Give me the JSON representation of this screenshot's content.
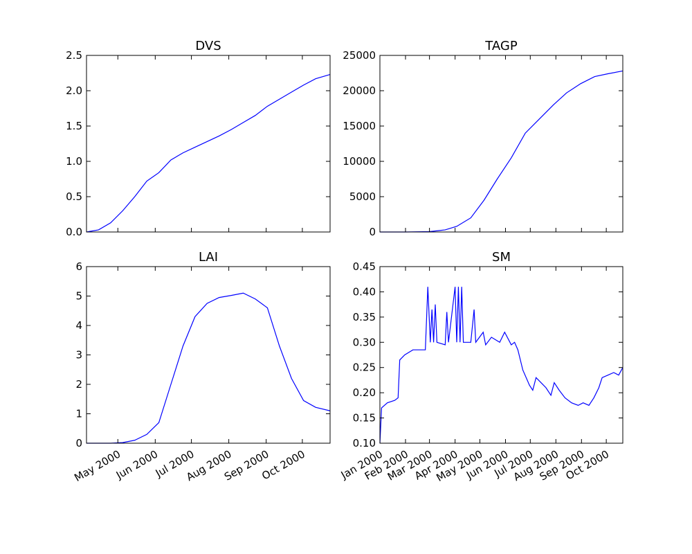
{
  "chart_data": [
    {
      "type": "line",
      "title": "DVS",
      "color": "#0000ff",
      "x": [
        "2000-04-05",
        "2000-04-15",
        "2000-04-25",
        "2000-05-05",
        "2000-05-15",
        "2000-05-25",
        "2000-06-04",
        "2000-06-14",
        "2000-06-24",
        "2000-07-04",
        "2000-07-14",
        "2000-07-24",
        "2000-08-03",
        "2000-08-13",
        "2000-08-23",
        "2000-09-02",
        "2000-09-12",
        "2000-09-22",
        "2000-10-02",
        "2000-10-12",
        "2000-10-24"
      ],
      "values": [
        0.0,
        0.03,
        0.13,
        0.3,
        0.5,
        0.72,
        0.84,
        1.02,
        1.12,
        1.2,
        1.28,
        1.36,
        1.45,
        1.55,
        1.65,
        1.78,
        1.88,
        1.98,
        2.08,
        2.17,
        2.23
      ],
      "xlim": [
        "2000-04-05",
        "2000-10-24"
      ],
      "xticks": [
        "2000-05-01",
        "2000-06-01",
        "2000-07-01",
        "2000-08-01",
        "2000-09-01",
        "2000-10-01"
      ],
      "ylim": [
        0,
        2.5
      ],
      "yticks": [
        {
          "value": 0,
          "label": "0.0"
        },
        0.5,
        {
          "value": 1,
          "label": "1.0"
        },
        1.5,
        {
          "value": 2,
          "label": "2.0"
        },
        2.5
      ]
    },
    {
      "type": "line",
      "title": "TAGP",
      "color": "#0000ff",
      "x": [
        "2000-01-01",
        "2000-02-01",
        "2000-03-01",
        "2000-03-20",
        "2000-04-03",
        "2000-04-20",
        "2000-05-06",
        "2000-05-22",
        "2000-06-08",
        "2000-06-25",
        "2000-07-12",
        "2000-07-29",
        "2000-08-14",
        "2000-08-31",
        "2000-09-17",
        "2000-10-03",
        "2000-10-21"
      ],
      "values": [
        0,
        0,
        50,
        300,
        800,
        2000,
        4500,
        7500,
        10500,
        14000,
        16000,
        18000,
        19700,
        21000,
        22000,
        22400,
        22800
      ],
      "xlim": [
        "2000-01-01",
        "2000-10-21"
      ],
      "xticks": [
        "2000-01-01",
        "2000-02-01",
        "2000-03-01",
        "2000-04-01",
        "2000-05-01",
        "2000-06-01",
        "2000-07-01",
        "2000-08-01",
        "2000-09-01",
        "2000-10-01"
      ],
      "ylim": [
        0,
        25000
      ],
      "yticks": [
        0,
        5000,
        10000,
        15000,
        20000,
        25000
      ]
    },
    {
      "type": "line",
      "title": "LAI",
      "color": "#0000ff",
      "x": [
        "2000-04-05",
        "2000-04-25",
        "2000-05-05",
        "2000-05-15",
        "2000-05-25",
        "2000-06-04",
        "2000-06-14",
        "2000-06-24",
        "2000-07-04",
        "2000-07-14",
        "2000-07-24",
        "2000-08-03",
        "2000-08-13",
        "2000-08-23",
        "2000-09-02",
        "2000-09-12",
        "2000-09-22",
        "2000-10-02",
        "2000-10-12",
        "2000-10-24"
      ],
      "values": [
        0,
        0,
        0.02,
        0.1,
        0.3,
        0.7,
        2.0,
        3.3,
        4.3,
        4.75,
        4.95,
        5.02,
        5.1,
        4.9,
        4.6,
        3.3,
        2.2,
        1.45,
        1.22,
        1.1
      ],
      "xlim": [
        "2000-04-05",
        "2000-10-24"
      ],
      "xticks": [
        {
          "value": "2000-05-01",
          "label": "May 2000"
        },
        {
          "value": "2000-06-01",
          "label": "Jun 2000"
        },
        {
          "value": "2000-07-01",
          "label": "Jul 2000"
        },
        {
          "value": "2000-08-01",
          "label": "Aug 2000"
        },
        {
          "value": "2000-09-01",
          "label": "Sep 2000"
        },
        {
          "value": "2000-10-01",
          "label": "Oct 2000"
        }
      ],
      "ylim": [
        0,
        6
      ],
      "yticks": [
        0,
        1,
        2,
        3,
        4,
        5,
        6
      ]
    },
    {
      "type": "line",
      "title": "SM",
      "color": "#0000ff",
      "x": [
        "2000-01-01",
        "2000-01-03",
        "2000-01-10",
        "2000-01-19",
        "2000-01-23",
        "2000-01-25",
        "2000-01-31",
        "2000-02-10",
        "2000-02-25",
        "2000-02-28",
        "2000-03-02",
        "2000-03-04",
        "2000-03-06",
        "2000-03-08",
        "2000-03-10",
        "2000-03-20",
        "2000-03-22",
        "2000-03-24",
        "2000-04-01",
        "2000-04-03",
        "2000-04-05",
        "2000-04-07",
        "2000-04-09",
        "2000-04-11",
        "2000-04-20",
        "2000-04-24",
        "2000-04-26",
        "2000-05-05",
        "2000-05-08",
        "2000-05-15",
        "2000-05-25",
        "2000-05-31",
        "2000-06-08",
        "2000-06-12",
        "2000-06-16",
        "2000-06-22",
        "2000-06-30",
        "2000-07-04",
        "2000-07-08",
        "2000-07-14",
        "2000-07-20",
        "2000-07-26",
        "2000-07-30",
        "2000-08-05",
        "2000-08-12",
        "2000-08-20",
        "2000-08-28",
        "2000-09-03",
        "2000-09-10",
        "2000-09-16",
        "2000-09-22",
        "2000-09-26",
        "2000-10-03",
        "2000-10-10",
        "2000-10-16",
        "2000-10-21"
      ],
      "values": [
        0.1,
        0.17,
        0.18,
        0.185,
        0.19,
        0.265,
        0.275,
        0.285,
        0.285,
        0.41,
        0.3,
        0.365,
        0.3,
        0.375,
        0.3,
        0.295,
        0.36,
        0.3,
        0.41,
        0.3,
        0.41,
        0.3,
        0.41,
        0.3,
        0.3,
        0.365,
        0.3,
        0.32,
        0.295,
        0.31,
        0.3,
        0.32,
        0.295,
        0.3,
        0.285,
        0.245,
        0.215,
        0.205,
        0.23,
        0.22,
        0.21,
        0.195,
        0.22,
        0.205,
        0.19,
        0.18,
        0.175,
        0.18,
        0.175,
        0.19,
        0.21,
        0.23,
        0.235,
        0.24,
        0.235,
        0.25
      ],
      "xlim": [
        "2000-01-01",
        "2000-10-21"
      ],
      "xticks": [
        {
          "value": "2000-01-01",
          "label": "Jan 2000"
        },
        {
          "value": "2000-02-01",
          "label": "Feb 2000"
        },
        {
          "value": "2000-03-01",
          "label": "Mar 2000"
        },
        {
          "value": "2000-04-01",
          "label": "Apr 2000"
        },
        {
          "value": "2000-05-01",
          "label": "May 2000"
        },
        {
          "value": "2000-06-01",
          "label": "Jun 2000"
        },
        {
          "value": "2000-07-01",
          "label": "Jul 2000"
        },
        {
          "value": "2000-08-01",
          "label": "Aug 2000"
        },
        {
          "value": "2000-09-01",
          "label": "Sep 2000"
        },
        {
          "value": "2000-10-01",
          "label": "Oct 2000"
        }
      ],
      "ylim": [
        0.1,
        0.45
      ],
      "yticks": [
        {
          "value": 0.1,
          "label": "0.10"
        },
        0.15,
        {
          "value": 0.2,
          "label": "0.20"
        },
        0.25,
        {
          "value": 0.3,
          "label": "0.30"
        },
        0.35,
        {
          "value": 0.4,
          "label": "0.40"
        },
        0.45
      ]
    }
  ]
}
